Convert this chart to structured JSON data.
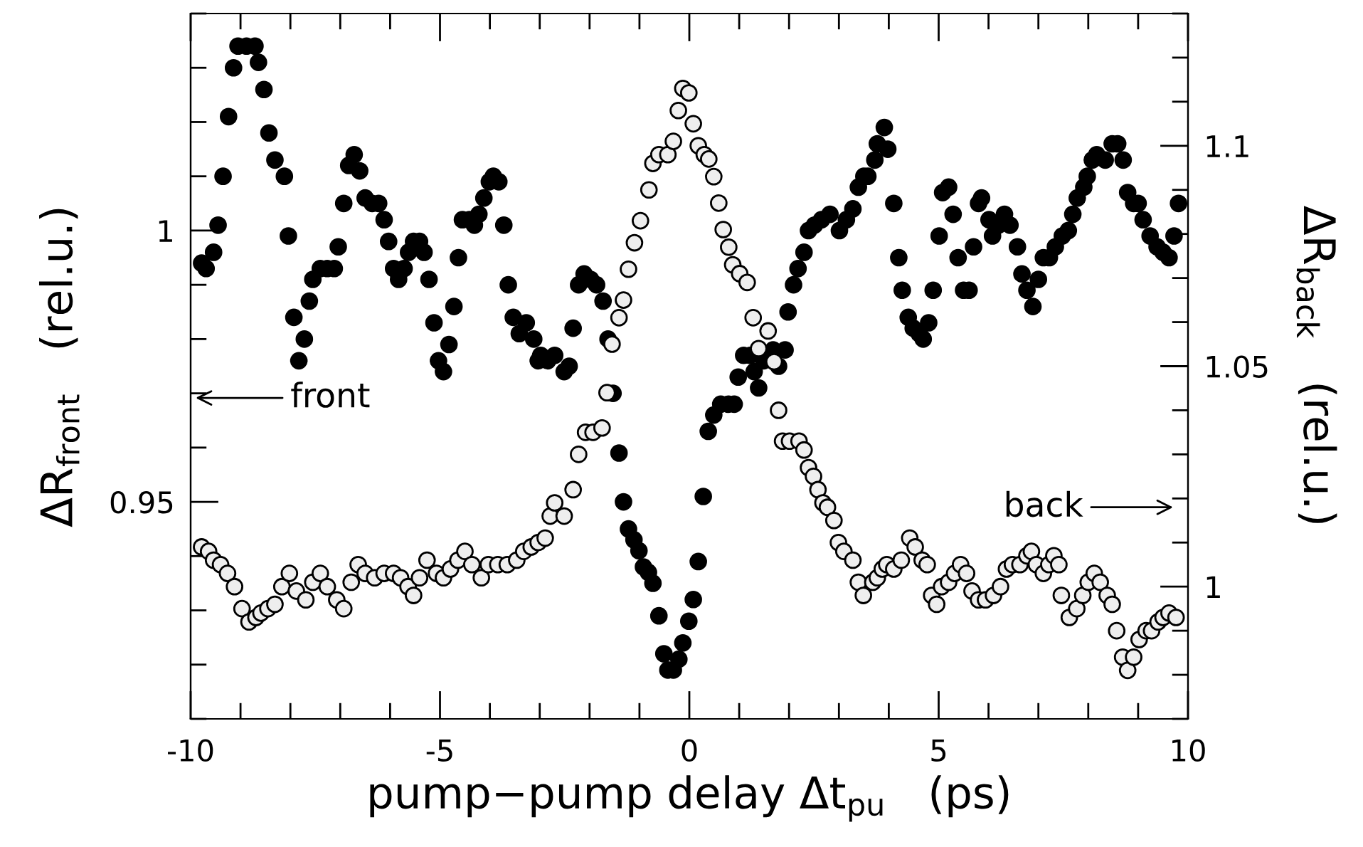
{
  "chart_data": {
    "type": "scatter",
    "xlabel": "pump−pump delay Δt$_{pu}$   (ps)",
    "ylabel": "ΔR$_{front}$   (rel.u.)",
    "y2label": "ΔR$_{back}$   (rel.u.)",
    "annotations": [
      "front",
      "back"
    ],
    "marker": "circle",
    "xlim": [
      -10,
      10
    ],
    "xticks": [
      -10,
      {
        "value": -9,
        "label": null
      },
      {
        "value": -8,
        "label": null
      },
      {
        "value": -7,
        "label": null
      },
      {
        "value": -6,
        "label": null
      },
      -5,
      {
        "value": -4,
        "label": null
      },
      {
        "value": -3,
        "label": null
      },
      {
        "value": -2,
        "label": null
      },
      {
        "value": -1,
        "label": null
      },
      0,
      {
        "value": 1,
        "label": null
      },
      {
        "value": 2,
        "label": null
      },
      {
        "value": 3,
        "label": null
      },
      {
        "value": 4,
        "label": null
      },
      5,
      {
        "value": 6,
        "label": null
      },
      {
        "value": 7,
        "label": null
      },
      {
        "value": 8,
        "label": null
      },
      {
        "value": 9,
        "label": null
      },
      10
    ],
    "ylim": [
      0.91,
      1.04
    ],
    "yticks": [
      {
        "value": 0.91,
        "label": null
      },
      {
        "value": 0.92,
        "label": null
      },
      {
        "value": 0.93,
        "label": null
      },
      {
        "value": 0.94,
        "label": null
      },
      0.95,
      {
        "value": 0.96,
        "label": null
      },
      {
        "value": 0.97,
        "label": null
      },
      {
        "value": 0.98,
        "label": null
      },
      {
        "value": 0.99,
        "label": null
      },
      1,
      {
        "value": 1.01,
        "label": null
      },
      {
        "value": 1.02,
        "label": null
      },
      {
        "value": 1.03,
        "label": null
      },
      {
        "value": 1.04,
        "label": null
      }
    ],
    "y2lim": [
      0.97,
      1.13
    ],
    "y2ticks": [
      {
        "value": 0.97,
        "label": null
      },
      {
        "value": 0.98,
        "label": null
      },
      {
        "value": 0.99,
        "label": null
      },
      1,
      {
        "value": 1.01,
        "label": null
      },
      {
        "value": 1.02,
        "label": null
      },
      {
        "value": 1.03,
        "label": null
      },
      {
        "value": 1.04,
        "label": null
      },
      1.05,
      {
        "value": 1.06,
        "label": null
      },
      {
        "value": 1.07,
        "label": null
      },
      {
        "value": 1.08,
        "label": null
      },
      {
        "value": 1.09,
        "label": null
      },
      1.1,
      {
        "value": 1.11,
        "label": null
      },
      {
        "value": 1.12,
        "label": null
      },
      {
        "value": 1.13,
        "label": null
      }
    ],
    "series": [
      {
        "color": "#000000",
        "axis": "y",
        "x": [
          -9.78,
          -9.69,
          -9.54,
          -9.45,
          -9.35,
          -9.24,
          -9.14,
          -9.05,
          -8.88,
          -8.71,
          -8.64,
          -8.53,
          -8.43,
          -8.31,
          -8.12,
          -8.04,
          -7.93,
          -7.83,
          -7.72,
          -7.62,
          -7.55,
          -7.4,
          -7.26,
          -7.12,
          -7.04,
          -6.93,
          -6.83,
          -6.72,
          -6.61,
          -6.5,
          -6.36,
          -6.23,
          -6.12,
          -6.03,
          -5.93,
          -5.83,
          -5.72,
          -5.63,
          -5.53,
          -5.41,
          -5.32,
          -5.22,
          -5.12,
          -5.03,
          -4.93,
          -4.82,
          -4.72,
          -4.63,
          -4.55,
          -4.41,
          -4.31,
          -4.22,
          -4.12,
          -4.01,
          -3.93,
          -3.82,
          -3.72,
          -3.63,
          -3.53,
          -3.41,
          -3.27,
          -3.12,
          -3.03,
          -2.98,
          -2.84,
          -2.7,
          -2.51,
          -2.41,
          -2.33,
          -2.22,
          -2.11,
          -1.98,
          -1.86,
          -1.73,
          -1.63,
          -1.53,
          -1.41,
          -1.32,
          -1.22,
          -1.11,
          -1.01,
          -0.92,
          -0.82,
          -0.73,
          -0.61,
          -0.51,
          -0.43,
          -0.32,
          -0.21,
          -0.13,
          -0.01,
          0.08,
          0.18,
          0.28,
          0.38,
          0.49,
          0.63,
          0.78,
          0.9,
          0.98,
          1.09,
          1.22,
          1.3,
          1.39,
          1.49,
          1.68,
          1.79,
          1.92,
          1.98,
          2.09,
          2.18,
          2.3,
          2.39,
          2.51,
          2.65,
          2.82,
          3.01,
          3.15,
          3.28,
          3.39,
          3.5,
          3.58,
          3.72,
          3.77,
          3.91,
          3.98,
          4.1,
          4.2,
          4.27,
          4.39,
          4.49,
          4.61,
          4.69,
          4.8,
          4.89,
          5.01,
          5.08,
          5.2,
          5.29,
          5.39,
          5.5,
          5.61,
          5.7,
          5.8,
          5.86,
          6.01,
          6.08,
          6.2,
          6.32,
          6.43,
          6.58,
          6.67,
          6.77,
          6.89,
          7.0,
          7.1,
          7.22,
          7.34,
          7.48,
          7.6,
          7.69,
          7.78,
          7.91,
          7.98,
          8.08,
          8.17,
          8.34,
          8.48,
          8.59,
          8.7,
          8.79,
          8.91,
          9.0,
          9.1,
          9.24,
          9.38,
          9.5,
          9.62,
          9.72,
          9.81
        ],
        "values": [
          0.994,
          0.993,
          0.996,
          1.001,
          1.01,
          1.021,
          1.03,
          1.034,
          1.034,
          1.034,
          1.031,
          1.026,
          1.018,
          1.013,
          1.01,
          0.999,
          0.984,
          0.976,
          0.98,
          0.987,
          0.991,
          0.993,
          0.993,
          0.993,
          0.997,
          1.005,
          1.012,
          1.014,
          1.011,
          1.006,
          1.005,
          1.005,
          1.002,
          0.998,
          0.993,
          0.991,
          0.993,
          0.996,
          0.998,
          0.998,
          0.996,
          0.991,
          0.983,
          0.976,
          0.974,
          0.979,
          0.986,
          0.995,
          1.002,
          1.002,
          1.001,
          1.003,
          1.006,
          1.009,
          1.01,
          1.009,
          1.001,
          0.99,
          0.984,
          0.981,
          0.983,
          0.98,
          0.976,
          0.977,
          0.976,
          0.977,
          0.974,
          0.975,
          0.982,
          0.99,
          0.992,
          0.991,
          0.99,
          0.987,
          0.98,
          0.97,
          0.959,
          0.95,
          0.945,
          0.943,
          0.941,
          0.938,
          0.937,
          0.935,
          0.929,
          0.922,
          0.919,
          0.919,
          0.921,
          0.924,
          0.928,
          0.932,
          0.939,
          0.951,
          0.963,
          0.966,
          0.968,
          0.968,
          0.968,
          0.973,
          0.977,
          0.977,
          0.974,
          0.971,
          0.976,
          0.978,
          0.975,
          0.978,
          0.985,
          0.99,
          0.993,
          0.996,
          1.0,
          1.001,
          1.002,
          1.003,
          1.0,
          1.002,
          1.004,
          1.008,
          1.01,
          1.01,
          1.013,
          1.016,
          1.019,
          1.015,
          1.005,
          0.995,
          0.989,
          0.984,
          0.982,
          0.981,
          0.98,
          0.983,
          0.989,
          0.999,
          1.007,
          1.008,
          1.003,
          0.995,
          0.989,
          0.989,
          0.997,
          1.005,
          1.006,
          1.002,
          0.999,
          1.001,
          1.003,
          1.001,
          0.997,
          0.992,
          0.989,
          0.986,
          0.991,
          0.995,
          0.995,
          0.997,
          0.999,
          1.0,
          1.003,
          1.006,
          1.008,
          1.01,
          1.013,
          1.014,
          1.013,
          1.016,
          1.016,
          1.013,
          1.007,
          1.005,
          1.005,
          1.002,
          0.999,
          0.997,
          0.996,
          0.995,
          0.999,
          1.005
        ]
      },
      {
        "color": "#eeeeee",
        "axis": "y2",
        "x": [
          -9.78,
          -9.64,
          -9.54,
          -9.4,
          -9.26,
          -9.12,
          -8.97,
          -8.83,
          -8.69,
          -8.59,
          -8.45,
          -8.31,
          -8.17,
          -8.02,
          -7.88,
          -7.69,
          -7.55,
          -7.4,
          -7.26,
          -7.07,
          -6.93,
          -6.78,
          -6.64,
          -6.5,
          -6.31,
          -6.12,
          -5.93,
          -5.79,
          -5.64,
          -5.53,
          -5.41,
          -5.26,
          -5.07,
          -4.93,
          -4.79,
          -4.64,
          -4.5,
          -4.36,
          -4.17,
          -4.03,
          -3.84,
          -3.65,
          -3.46,
          -3.32,
          -3.17,
          -3.03,
          -2.89,
          -2.79,
          -2.7,
          -2.51,
          -2.33,
          -2.22,
          -2.08,
          -1.93,
          -1.75,
          -1.65,
          -1.55,
          -1.41,
          -1.32,
          -1.22,
          -1.1,
          -0.98,
          -0.81,
          -0.73,
          -0.61,
          -0.43,
          -0.32,
          -0.22,
          -0.13,
          -0.01,
          0.08,
          0.18,
          0.3,
          0.39,
          0.49,
          0.59,
          0.68,
          0.79,
          0.87,
          1.01,
          1.16,
          1.28,
          1.39,
          1.58,
          1.7,
          1.79,
          1.87,
          2.01,
          2.2,
          2.3,
          2.39,
          2.49,
          2.58,
          2.68,
          2.77,
          2.9,
          2.99,
          3.1,
          3.28,
          3.39,
          3.49,
          3.68,
          3.77,
          3.87,
          3.96,
          4.1,
          4.25,
          4.42,
          4.53,
          4.67,
          4.77,
          4.86,
          4.96,
          5.06,
          5.2,
          5.32,
          5.44,
          5.56,
          5.67,
          5.8,
          5.94,
          6.1,
          6.24,
          6.36,
          6.48,
          6.63,
          6.77,
          6.86,
          6.96,
          7.1,
          7.21,
          7.31,
          7.41,
          7.46,
          7.62,
          7.77,
          7.89,
          8.0,
          8.12,
          8.24,
          8.38,
          8.48,
          8.57,
          8.69,
          8.79,
          8.91,
          9.02,
          9.16,
          9.27,
          9.4,
          9.5,
          9.62,
          9.76
        ],
        "values": [
          1.009,
          1.008,
          1.006,
          1.005,
          1.003,
          1.0,
          0.995,
          0.992,
          0.993,
          0.994,
          0.995,
          0.996,
          1.0,
          1.003,
          0.999,
          0.997,
          1.001,
          1.003,
          1.0,
          0.997,
          0.995,
          1.001,
          1.005,
          1.003,
          1.002,
          1.003,
          1.003,
          1.002,
          1.0,
          0.998,
          1.002,
          1.006,
          1.003,
          1.002,
          1.004,
          1.006,
          1.008,
          1.005,
          1.002,
          1.005,
          1.005,
          1.005,
          1.006,
          1.008,
          1.009,
          1.01,
          1.011,
          1.016,
          1.019,
          1.016,
          1.022,
          1.03,
          1.035,
          1.035,
          1.036,
          1.044,
          1.055,
          1.061,
          1.065,
          1.072,
          1.078,
          1.083,
          1.09,
          1.096,
          1.098,
          1.098,
          1.101,
          1.108,
          1.113,
          1.112,
          1.105,
          1.1,
          1.098,
          1.097,
          1.093,
          1.087,
          1.081,
          1.077,
          1.073,
          1.071,
          1.069,
          1.061,
          1.054,
          1.058,
          1.051,
          1.04,
          1.033,
          1.033,
          1.033,
          1.031,
          1.027,
          1.025,
          1.022,
          1.019,
          1.018,
          1.015,
          1.01,
          1.008,
          1.006,
          1.001,
          0.998,
          1.001,
          1.002,
          1.004,
          1.005,
          1.004,
          1.006,
          1.011,
          1.009,
          1.006,
          1.005,
          0.998,
          0.996,
          1.0,
          1.001,
          1.003,
          1.005,
          1.003,
          0.999,
          0.997,
          0.997,
          0.998,
          1.0,
          1.004,
          1.005,
          1.005,
          1.007,
          1.008,
          1.005,
          1.003,
          1.005,
          1.007,
          1.005,
          0.998,
          0.993,
          0.995,
          0.998,
          1.001,
          1.003,
          1.001,
          0.998,
          0.996,
          0.99,
          0.984,
          0.981,
          0.984,
          0.988,
          0.99,
          0.99,
          0.992,
          0.993,
          0.994,
          0.993
        ]
      }
    ]
  }
}
